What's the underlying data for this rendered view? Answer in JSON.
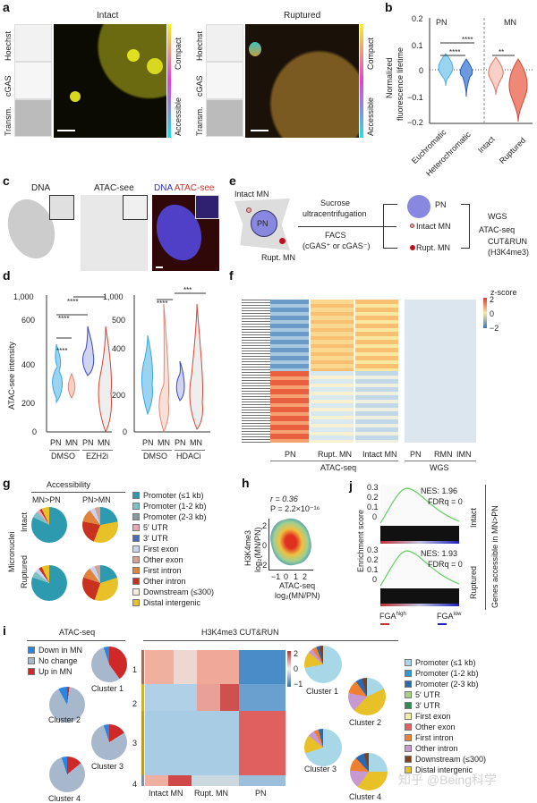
{
  "panels": {
    "a": {
      "label": "a",
      "intact_title": "Intact",
      "ruptured_title": "Ruptured",
      "row_labels": [
        "Hoechst",
        "cGAS",
        "Transm."
      ],
      "colorbar_top": "Compact",
      "colorbar_bottom": "Accessible"
    },
    "b": {
      "label": "b",
      "ylabel_line1": "Normalized",
      "ylabel_line2": "fluorescence lifetime",
      "group_pn": "PN",
      "group_mn": "MN",
      "yticks": [
        "0.2",
        "0.1",
        "0",
        "−0.1",
        "−0.2"
      ],
      "categories": [
        "Euchromatic",
        "Heterochromatic",
        "Intact",
        "Ruptured"
      ],
      "sig": [
        "****",
        "****",
        "**"
      ]
    },
    "c": {
      "label": "c",
      "titles": [
        "DNA",
        "ATAC-see"
      ],
      "merge_dna": "DNA",
      "merge_atac": "ATAC-see"
    },
    "d": {
      "label": "d",
      "ylabel": "ATAC-see intensity",
      "left_yticks": [
        "1,000",
        "600",
        "400",
        "200",
        "0"
      ],
      "right_yticks": [
        "1,000",
        "500",
        "400",
        "200",
        "0"
      ],
      "xlabels": [
        "PN",
        "MN",
        "PN",
        "MN"
      ],
      "left_groups": [
        "DMSO",
        "EZH2i"
      ],
      "right_groups": [
        "DMSO",
        "HDACi"
      ],
      "sig_left": [
        "****",
        "****",
        "****"
      ],
      "sig_right": [
        "****",
        "***"
      ]
    },
    "e": {
      "label": "e",
      "intact_mn": "Intact MN",
      "pn": "PN",
      "rupt_mn": "Rupt. MN",
      "method1": "Sucrose",
      "method1b": "ultracentrifugation",
      "method2": "FACS",
      "method2b": "(cGAS⁺ or cGAS⁻)",
      "out_pn": "PN",
      "out_intact": "Intact MN",
      "out_rupt": "Rupt. MN",
      "assays": [
        "WGS",
        "ATAC-seq",
        "CUT&RUN",
        "(H3K4me3)"
      ]
    },
    "f": {
      "label": "f",
      "zscore_label": "z-score",
      "zticks": [
        "2",
        "0",
        "−2"
      ],
      "atac_cols": [
        "PN",
        "Rupt. MN",
        "Intact MN"
      ],
      "wgs_cols": [
        "PN",
        "RMN",
        "IMN"
      ],
      "atac_group": "ATAC-seq",
      "wgs_group": "WGS"
    },
    "g": {
      "label": "g",
      "accessibility": "Accessibility",
      "col1": "MN>PN",
      "col2": "PN>MN",
      "row_group": "Micronuclei",
      "rows": [
        "Intact",
        "Ruptured"
      ],
      "legend": [
        {
          "label": "Promoter (≤1 kb)",
          "color": "#2e9ab0"
        },
        {
          "label": "Promoter (1-2 kb)",
          "color": "#7cc0c8"
        },
        {
          "label": "Promoter (2-3 kb)",
          "color": "#8a9a9a"
        },
        {
          "label": "5′ UTR",
          "color": "#e8a8b8"
        },
        {
          "label": "3′ UTR",
          "color": "#4a6cc0"
        },
        {
          "label": "First exon",
          "color": "#c8d4f0"
        },
        {
          "label": "Other exon",
          "color": "#d8a090"
        },
        {
          "label": "First intron",
          "color": "#e0843c"
        },
        {
          "label": "Other intron",
          "color": "#c83020"
        },
        {
          "label": "Downstream (≤300)",
          "color": "#f4ecdc"
        },
        {
          "label": "Distal intergenic",
          "color": "#e8c028"
        }
      ]
    },
    "h": {
      "label": "h",
      "r_text": "r = 0.36",
      "p_text": "P = 2.2×10⁻¹⁶",
      "ylabel1": "H3K4me3",
      "ylabel2": "log₂(MN/PN)",
      "xlabel1": "ATAC-seq",
      "xlabel2": "log₂(MN/PN)",
      "xticks": [
        "−1",
        "0",
        "1",
        "2"
      ],
      "yticks": [
        "2",
        "0",
        "−2"
      ]
    },
    "j": {
      "label": "j",
      "ylabel": "Enrichment score",
      "intact_nes": "NES: 1.96",
      "intact_fdr": "FDRq = 0",
      "ruptured_nes": "NES: 1.93",
      "ruptured_fdr": "FDRq = 0",
      "yticks": [
        "0.3",
        "0.2",
        "0.1",
        "0"
      ],
      "row_intact": "Intact",
      "row_ruptured": "Ruptured",
      "side_label": "Genes accessible in MN>PN",
      "fga_high": "FGA",
      "fga_high_sup": "high",
      "fga_low": "FGA",
      "fga_low_sup": "low"
    },
    "i": {
      "label": "i",
      "atac_title": "ATAC-seq",
      "cutrun_title": "H3K4me3 CUT&RUN",
      "atac_legend": [
        {
          "label": "Down in MN",
          "color": "#2a84e0"
        },
        {
          "label": "No change",
          "color": "#a8b8cc"
        },
        {
          "label": "Up in MN",
          "color": "#d02828"
        }
      ],
      "clusters": [
        "Cluster 1",
        "Cluster 2",
        "Cluster 3",
        "Cluster 4"
      ],
      "row_numbers": [
        "1",
        "2",
        "3",
        "4"
      ],
      "cols": [
        "Intact MN",
        "Rupt. MN",
        "PN"
      ],
      "cticks": [
        "2",
        "0",
        "−1"
      ],
      "legend": [
        {
          "label": "Promoter (≤1 kb)",
          "color": "#a8d8e8"
        },
        {
          "label": "Promoter (1-2 kb)",
          "color": "#2a9ad8"
        },
        {
          "label": "Promoter (2-3 kb)",
          "color": "#2a68b0"
        },
        {
          "label": "5′ UTR",
          "color": "#a8d088"
        },
        {
          "label": "3′ UTR",
          "color": "#2a9050"
        },
        {
          "label": "First exon",
          "color": "#f0f0a8"
        },
        {
          "label": "Other exon",
          "color": "#e86060"
        },
        {
          "label": "First intron",
          "color": "#f08030"
        },
        {
          "label": "Other intron",
          "color": "#c898d0"
        },
        {
          "label": "Downstream (≤300)",
          "color": "#7a4020"
        },
        {
          "label": "Distal intergenic",
          "color": "#e8c028"
        }
      ]
    }
  },
  "watermark": "知乎 @Being科学"
}
